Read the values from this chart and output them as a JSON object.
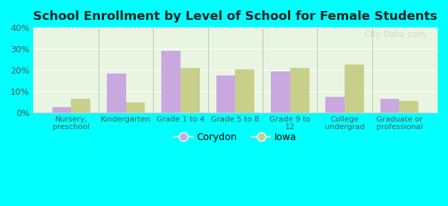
{
  "title": "School Enrollment by Level of School for Female Students",
  "categories": [
    "Nursery,\npreschool",
    "Kindergarten",
    "Grade 1 to 4",
    "Grade 5 to 8",
    "Grade 9 to\n12",
    "College\nundergrad",
    "Graduate or\nprofessional"
  ],
  "corydon": [
    2.5,
    18.5,
    29.0,
    17.5,
    19.5,
    7.5,
    6.5
  ],
  "iowa": [
    6.5,
    5.0,
    21.0,
    20.5,
    21.0,
    22.5,
    5.5
  ],
  "corydon_color": "#c9a8e0",
  "iowa_color": "#c8cf8a",
  "background_outer": "#00FFFF",
  "background_inner": "#e8f5e0",
  "ylim": [
    0,
    40
  ],
  "yticks": [
    0,
    10,
    20,
    30,
    40
  ],
  "ytick_labels": [
    "0%",
    "10%",
    "20%",
    "30%",
    "40%"
  ],
  "bar_width": 0.35,
  "legend_labels": [
    "Corydon",
    "Iowa"
  ],
  "watermark": "City-Data.com"
}
